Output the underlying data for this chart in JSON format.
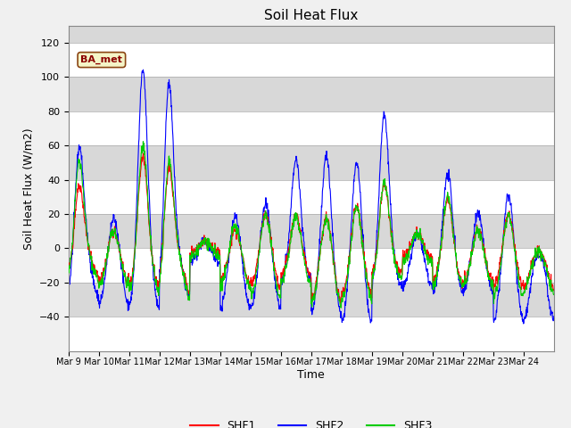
{
  "title": "Soil Heat Flux",
  "ylabel": "Soil Heat Flux (W/m2)",
  "xlabel": "Time",
  "ylim": [
    -60,
    130
  ],
  "yticks": [
    -40,
    -20,
    0,
    20,
    40,
    60,
    80,
    100,
    120
  ],
  "band_edges": [
    -60,
    -40,
    -20,
    0,
    20,
    40,
    60,
    80,
    100,
    120
  ],
  "band_colors": [
    "#d8d8d8",
    "#ffffff",
    "#d8d8d8",
    "#ffffff",
    "#d8d8d8",
    "#ffffff",
    "#d8d8d8",
    "#ffffff",
    "#ffffff"
  ],
  "legend_labels": [
    "SHF1",
    "SHF2",
    "SHF3"
  ],
  "line_colors": [
    "#ff0000",
    "#0000ff",
    "#00cc00"
  ],
  "annotation_text": "BA_met",
  "xtick_labels": [
    "Mar 9",
    "Mar 10",
    "Mar 11",
    "Mar 12",
    "Mar 13",
    "Mar 14",
    "Mar 15",
    "Mar 16",
    "Mar 17",
    "Mar 18",
    "Mar 19",
    "Mar 20",
    "Mar 21",
    "Mar 22",
    "Mar 23",
    "Mar 24"
  ],
  "num_days": 16
}
